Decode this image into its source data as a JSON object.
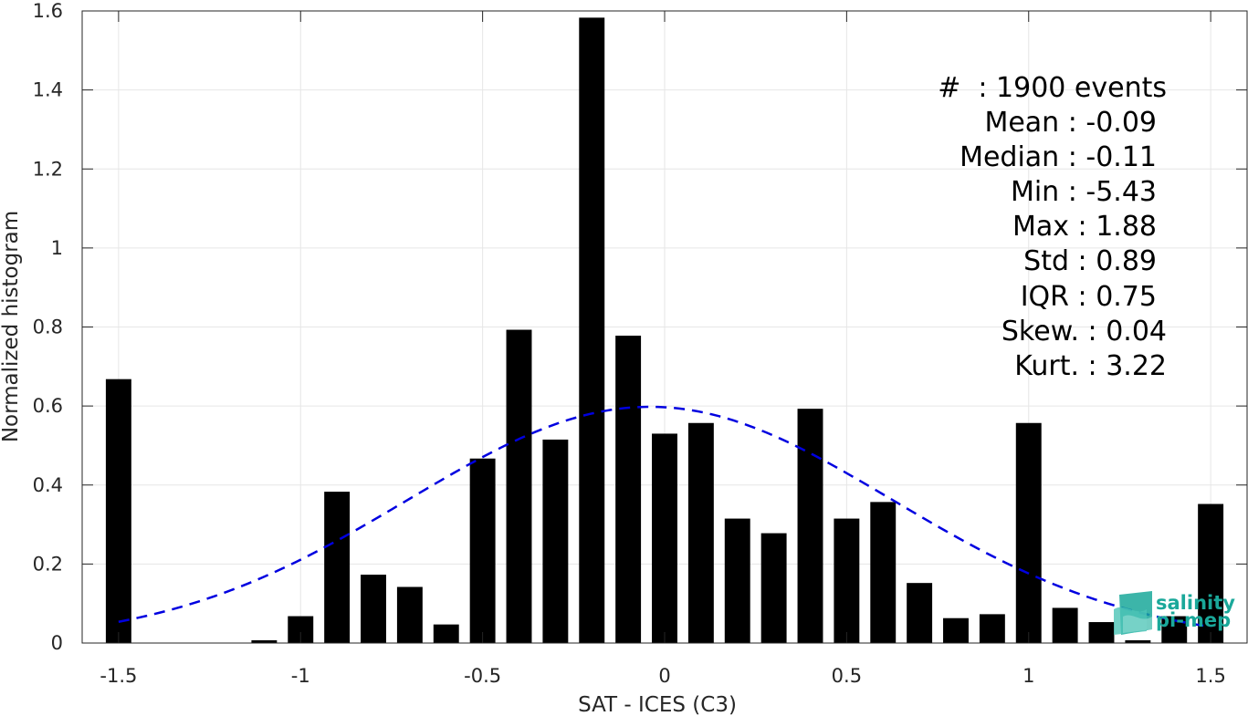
{
  "chart_data": {
    "type": "bar",
    "xlabel": "SAT - ICES (C3)",
    "ylabel": "Normalized histogram",
    "xlim": [
      -1.6,
      1.6
    ],
    "ylim": [
      0,
      1.6
    ],
    "xticks": [
      -1.5,
      -1,
      -0.5,
      0,
      0.5,
      1,
      1.5
    ],
    "xtick_labels": [
      "-1.5",
      "-1",
      "-0.5",
      "0",
      "0.5",
      "1",
      "1.5"
    ],
    "yticks": [
      0,
      0.2,
      0.4,
      0.6,
      0.8,
      1,
      1.2,
      1.4,
      1.6
    ],
    "ytick_labels": [
      "0",
      "0.2",
      "0.4",
      "0.6",
      "0.8",
      "1",
      "1.2",
      "1.4",
      "1.6"
    ],
    "grid": true,
    "bar_width": 0.07,
    "bars": {
      "x": [
        -1.5,
        -1.4,
        -1.3,
        -1.2,
        -1.1,
        -1.0,
        -0.9,
        -0.8,
        -0.7,
        -0.6,
        -0.5,
        -0.4,
        -0.3,
        -0.2,
        -0.1,
        0.0,
        0.1,
        0.2,
        0.3,
        0.4,
        0.5,
        0.6,
        0.7,
        0.8,
        0.9,
        1.0,
        1.1,
        1.2,
        1.3,
        1.4,
        1.5
      ],
      "values": [
        0.668,
        0.0,
        0.0,
        0.0,
        0.007,
        0.068,
        0.383,
        0.173,
        0.142,
        0.047,
        0.467,
        0.793,
        0.515,
        1.583,
        0.778,
        0.53,
        0.557,
        0.315,
        0.278,
        0.593,
        0.315,
        0.357,
        0.152,
        0.063,
        0.073,
        0.557,
        0.089,
        0.053,
        0.007,
        0.068,
        0.352
      ],
      "color": "#000000"
    },
    "fit_curve": {
      "style": "dashed",
      "color": "#0000e0",
      "mean": -0.04,
      "std": 0.665,
      "peak": 0.598,
      "x_range": [
        -1.5,
        1.5
      ]
    }
  },
  "stats": [
    "#  : 1900 events",
    "Mean : -0.09",
    "Median : -0.11",
    "Min : -5.43",
    "Max : 1.88",
    "Std : 0.89",
    "IQR : 0.75",
    "Skew. : 0.04",
    "Kurt. : 3.22"
  ],
  "logo": {
    "line1": "salinity",
    "line2": "pi-mep",
    "color": "#1aa89a"
  }
}
